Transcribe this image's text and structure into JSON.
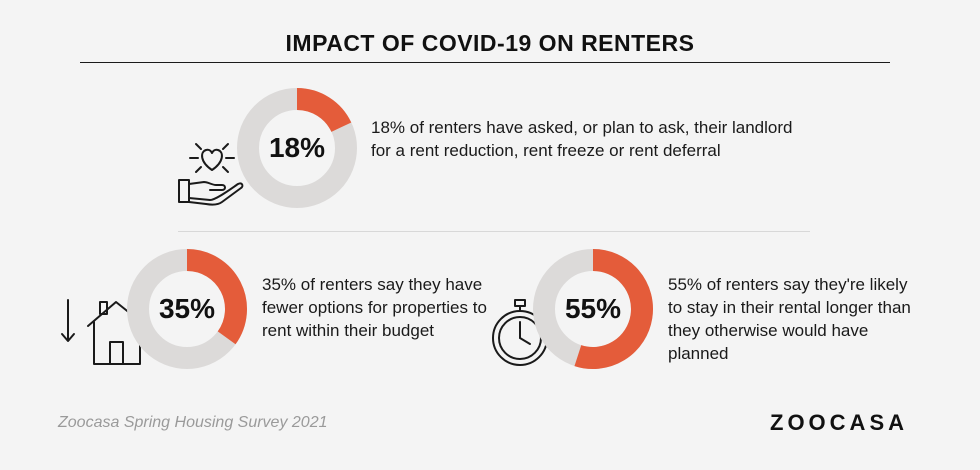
{
  "title": "IMPACT OF COVID-19 ON RENTERS",
  "colors": {
    "accent": "#e45c3a",
    "track": "#dcdad9",
    "background": "#f4f4f4"
  },
  "chart_data": [
    {
      "type": "pie",
      "variant": "donut",
      "values": [
        18,
        82
      ],
      "label": "18%",
      "description": "18% of renters have asked, or plan to ask, their landlord for a rent reduction, rent freeze or rent deferral",
      "icon": "heart-in-hand-icon"
    },
    {
      "type": "pie",
      "variant": "donut",
      "values": [
        35,
        65
      ],
      "label": "35%",
      "description": "35% of renters say they have fewer options for properties to rent within their budget",
      "icon": "house-down-arrow-icon"
    },
    {
      "type": "pie",
      "variant": "donut",
      "values": [
        55,
        45
      ],
      "label": "55%",
      "description": "55% of renters say they're likely to stay in their rental longer than they otherwise would have planned",
      "icon": "stopwatch-icon"
    }
  ],
  "footer": {
    "source": "Zoocasa Spring Housing Survey 2021",
    "brand": "ZOOCASA"
  }
}
